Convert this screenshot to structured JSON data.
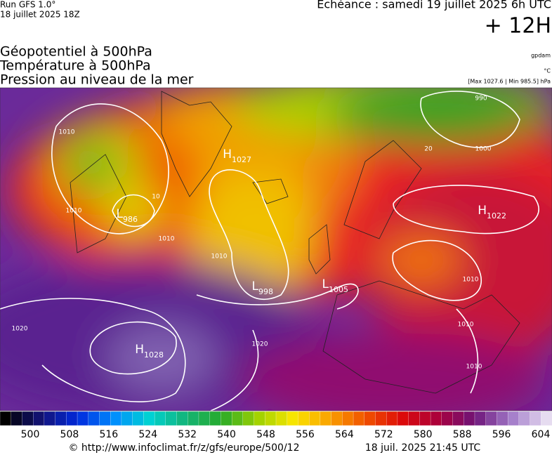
{
  "header": {
    "run": "Run GFS 1.0°",
    "run_date": "18 juillet 2025 18Z",
    "valid": "Echéance : samedi 19 juillet 2025 6h UTC",
    "lead": "+ 12H",
    "fields": [
      "Géopotentiel à 500hPa",
      "Température à 500hPa",
      "Pression au niveau de la mer"
    ],
    "units": [
      "gpdam",
      "°C",
      "[Max 1027.6 | Min 985.5] hPa"
    ]
  },
  "map": {
    "centers": [
      {
        "letter": "H",
        "value": 1027
      },
      {
        "letter": "L",
        "value": 986
      },
      {
        "letter": "L",
        "value": 998
      },
      {
        "letter": "L",
        "value": 1005
      },
      {
        "letter": "H",
        "value": 1022
      },
      {
        "letter": "H",
        "value": 1028
      }
    ],
    "isobar_labels": [
      1010,
      1010,
      1010,
      1010,
      1000,
      990,
      1020,
      1020,
      1010,
      1010,
      1010,
      10,
      20
    ]
  },
  "colorbar": {
    "ticks": [
      500,
      508,
      516,
      524,
      532,
      540,
      548,
      556,
      564,
      572,
      580,
      588,
      596,
      604
    ]
  },
  "footer": {
    "url": "© http://www.infoclimat.fr/z/gfs/europe/500/12",
    "generated": "18 juil. 2025 21:45 UTC"
  }
}
